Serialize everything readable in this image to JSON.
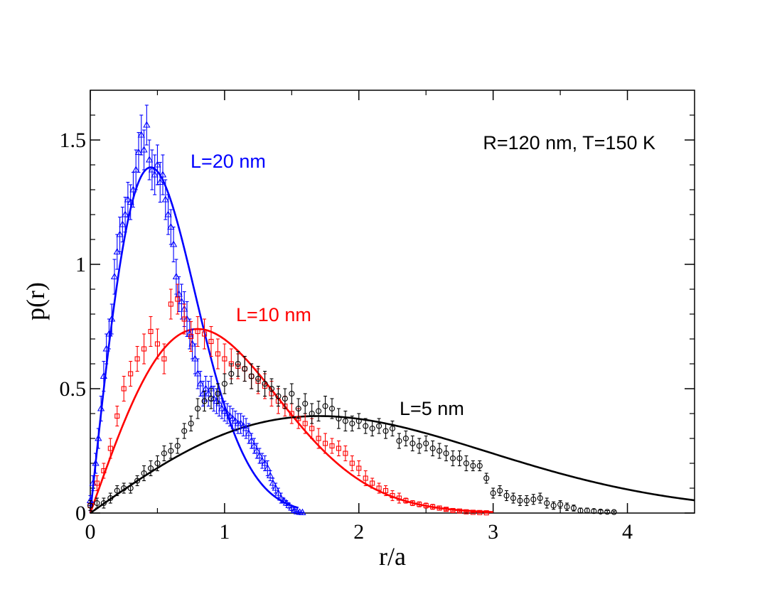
{
  "chart_data": {
    "type": "scatter",
    "title": "",
    "xlabel": "r/a",
    "ylabel": "p(r)",
    "xlim": [
      0,
      4.5
    ],
    "ylim": [
      0,
      1.7
    ],
    "xticks": [
      0,
      1,
      2,
      3,
      4
    ],
    "xtick_labels": [
      "0",
      "1",
      "2",
      "3",
      "4"
    ],
    "yticks": [
      0,
      0.5,
      1,
      1.5
    ],
    "ytick_labels": [
      "0",
      "0.5",
      "1",
      "1.5"
    ],
    "grid": false,
    "annotation": "R=120 nm, T=150 K",
    "series": [
      {
        "name": "L=20 nm",
        "color": "#0000ff",
        "marker": "triangle",
        "fit": {
          "peak_x": 0.45,
          "peak_y": 1.39,
          "x_max": 1.55
        },
        "points": [
          [
            0.0,
            0.05,
            0.02
          ],
          [
            0.02,
            0.12,
            0.03
          ],
          [
            0.04,
            0.2,
            0.04
          ],
          [
            0.06,
            0.3,
            0.04
          ],
          [
            0.08,
            0.42,
            0.05
          ],
          [
            0.1,
            0.55,
            0.06
          ],
          [
            0.12,
            0.66,
            0.06
          ],
          [
            0.14,
            0.72,
            0.06
          ],
          [
            0.16,
            0.78,
            0.06
          ],
          [
            0.18,
            0.95,
            0.07
          ],
          [
            0.2,
            1.05,
            0.07
          ],
          [
            0.22,
            1.12,
            0.07
          ],
          [
            0.24,
            1.16,
            0.07
          ],
          [
            0.26,
            1.2,
            0.07
          ],
          [
            0.28,
            1.26,
            0.07
          ],
          [
            0.3,
            1.25,
            0.07
          ],
          [
            0.32,
            1.3,
            0.07
          ],
          [
            0.34,
            1.38,
            0.08
          ],
          [
            0.36,
            1.45,
            0.08
          ],
          [
            0.38,
            1.52,
            0.08
          ],
          [
            0.4,
            1.46,
            0.08
          ],
          [
            0.42,
            1.56,
            0.08
          ],
          [
            0.44,
            1.42,
            0.08
          ],
          [
            0.46,
            1.38,
            0.08
          ],
          [
            0.48,
            1.36,
            0.08
          ],
          [
            0.5,
            1.4,
            0.08
          ],
          [
            0.52,
            1.33,
            0.08
          ],
          [
            0.54,
            1.36,
            0.08
          ],
          [
            0.56,
            1.26,
            0.08
          ],
          [
            0.58,
            1.2,
            0.08
          ],
          [
            0.6,
            1.15,
            0.07
          ],
          [
            0.62,
            1.08,
            0.07
          ],
          [
            0.64,
            0.95,
            0.07
          ],
          [
            0.66,
            0.88,
            0.07
          ],
          [
            0.68,
            0.85,
            0.07
          ],
          [
            0.7,
            0.82,
            0.07
          ],
          [
            0.72,
            0.78,
            0.07
          ],
          [
            0.74,
            0.72,
            0.06
          ],
          [
            0.76,
            0.68,
            0.06
          ],
          [
            0.78,
            0.62,
            0.06
          ],
          [
            0.8,
            0.56,
            0.06
          ],
          [
            0.82,
            0.52,
            0.05
          ],
          [
            0.84,
            0.48,
            0.05
          ],
          [
            0.86,
            0.5,
            0.05
          ],
          [
            0.88,
            0.48,
            0.05
          ],
          [
            0.9,
            0.5,
            0.05
          ],
          [
            0.92,
            0.46,
            0.05
          ],
          [
            0.94,
            0.45,
            0.05
          ],
          [
            0.96,
            0.44,
            0.05
          ],
          [
            0.98,
            0.42,
            0.04
          ],
          [
            1.0,
            0.41,
            0.04
          ],
          [
            1.02,
            0.4,
            0.04
          ],
          [
            1.04,
            0.39,
            0.04
          ],
          [
            1.06,
            0.38,
            0.04
          ],
          [
            1.08,
            0.37,
            0.04
          ],
          [
            1.1,
            0.36,
            0.04
          ],
          [
            1.12,
            0.36,
            0.04
          ],
          [
            1.14,
            0.35,
            0.04
          ],
          [
            1.16,
            0.34,
            0.04
          ],
          [
            1.18,
            0.32,
            0.04
          ],
          [
            1.2,
            0.29,
            0.03
          ],
          [
            1.22,
            0.27,
            0.03
          ],
          [
            1.24,
            0.25,
            0.03
          ],
          [
            1.26,
            0.23,
            0.03
          ],
          [
            1.28,
            0.21,
            0.03
          ],
          [
            1.3,
            0.2,
            0.03
          ],
          [
            1.32,
            0.18,
            0.03
          ],
          [
            1.34,
            0.15,
            0.02
          ],
          [
            1.36,
            0.12,
            0.02
          ],
          [
            1.38,
            0.1,
            0.02
          ],
          [
            1.4,
            0.08,
            0.02
          ],
          [
            1.42,
            0.06,
            0.02
          ],
          [
            1.44,
            0.05,
            0.01
          ],
          [
            1.46,
            0.04,
            0.01
          ],
          [
            1.48,
            0.03,
            0.01
          ],
          [
            1.5,
            0.02,
            0.01
          ],
          [
            1.52,
            0.01,
            0.005
          ],
          [
            1.54,
            0.005,
            0.003
          ],
          [
            1.56,
            0.003,
            0.002
          ],
          [
            1.58,
            0.002,
            0.001
          ]
        ]
      },
      {
        "name": "L=10 nm",
        "color": "#ff0000",
        "marker": "square",
        "fit": {
          "peak_x": 0.8,
          "peak_y": 0.74,
          "x_max": 3.0
        },
        "points": [
          [
            0.0,
            0.03,
            0.02
          ],
          [
            0.05,
            0.12,
            0.03
          ],
          [
            0.1,
            0.17,
            0.03
          ],
          [
            0.15,
            0.26,
            0.04
          ],
          [
            0.2,
            0.39,
            0.04
          ],
          [
            0.25,
            0.5,
            0.05
          ],
          [
            0.3,
            0.56,
            0.05
          ],
          [
            0.35,
            0.62,
            0.05
          ],
          [
            0.4,
            0.66,
            0.06
          ],
          [
            0.45,
            0.73,
            0.06
          ],
          [
            0.5,
            0.68,
            0.06
          ],
          [
            0.55,
            0.62,
            0.06
          ],
          [
            0.6,
            0.84,
            0.06
          ],
          [
            0.65,
            0.86,
            0.06
          ],
          [
            0.7,
            0.78,
            0.06
          ],
          [
            0.75,
            0.71,
            0.06
          ],
          [
            0.8,
            0.73,
            0.06
          ],
          [
            0.85,
            0.72,
            0.06
          ],
          [
            0.9,
            0.69,
            0.06
          ],
          [
            0.95,
            0.64,
            0.06
          ],
          [
            1.0,
            0.62,
            0.06
          ],
          [
            1.05,
            0.6,
            0.06
          ],
          [
            1.1,
            0.59,
            0.05
          ],
          [
            1.15,
            0.58,
            0.05
          ],
          [
            1.2,
            0.55,
            0.05
          ],
          [
            1.25,
            0.53,
            0.05
          ],
          [
            1.3,
            0.51,
            0.05
          ],
          [
            1.35,
            0.48,
            0.05
          ],
          [
            1.4,
            0.45,
            0.05
          ],
          [
            1.45,
            0.43,
            0.04
          ],
          [
            1.5,
            0.4,
            0.04
          ],
          [
            1.55,
            0.38,
            0.04
          ],
          [
            1.6,
            0.36,
            0.04
          ],
          [
            1.65,
            0.34,
            0.04
          ],
          [
            1.7,
            0.3,
            0.04
          ],
          [
            1.75,
            0.28,
            0.04
          ],
          [
            1.8,
            0.27,
            0.03
          ],
          [
            1.85,
            0.26,
            0.03
          ],
          [
            1.9,
            0.24,
            0.03
          ],
          [
            1.95,
            0.2,
            0.03
          ],
          [
            2.0,
            0.18,
            0.03
          ],
          [
            2.05,
            0.14,
            0.03
          ],
          [
            2.1,
            0.12,
            0.02
          ],
          [
            2.15,
            0.1,
            0.02
          ],
          [
            2.2,
            0.09,
            0.02
          ],
          [
            2.25,
            0.07,
            0.02
          ],
          [
            2.3,
            0.06,
            0.02
          ],
          [
            2.35,
            0.05,
            0.01
          ],
          [
            2.4,
            0.04,
            0.01
          ],
          [
            2.45,
            0.035,
            0.01
          ],
          [
            2.5,
            0.03,
            0.01
          ],
          [
            2.55,
            0.025,
            0.01
          ],
          [
            2.6,
            0.02,
            0.008
          ],
          [
            2.65,
            0.015,
            0.006
          ],
          [
            2.7,
            0.01,
            0.004
          ],
          [
            2.75,
            0.008,
            0.003
          ],
          [
            2.8,
            0.005,
            0.002
          ],
          [
            2.85,
            0.003,
            0.001
          ],
          [
            2.9,
            0.002,
            0.001
          ],
          [
            2.95,
            0.001,
            0.001
          ]
        ]
      },
      {
        "name": "L=5 nm",
        "color": "#000000",
        "marker": "circle",
        "fit": {
          "peak_x": 1.7,
          "peak_y": 0.39,
          "x_max": 4.5
        },
        "points": [
          [
            0.0,
            0.03,
            0.02
          ],
          [
            0.05,
            0.04,
            0.02
          ],
          [
            0.1,
            0.04,
            0.02
          ],
          [
            0.15,
            0.06,
            0.02
          ],
          [
            0.2,
            0.09,
            0.02
          ],
          [
            0.25,
            0.1,
            0.02
          ],
          [
            0.3,
            0.1,
            0.02
          ],
          [
            0.35,
            0.13,
            0.02
          ],
          [
            0.4,
            0.16,
            0.03
          ],
          [
            0.45,
            0.18,
            0.03
          ],
          [
            0.5,
            0.2,
            0.03
          ],
          [
            0.55,
            0.24,
            0.03
          ],
          [
            0.6,
            0.25,
            0.03
          ],
          [
            0.65,
            0.27,
            0.03
          ],
          [
            0.7,
            0.33,
            0.03
          ],
          [
            0.75,
            0.36,
            0.03
          ],
          [
            0.8,
            0.42,
            0.04
          ],
          [
            0.85,
            0.45,
            0.04
          ],
          [
            0.9,
            0.46,
            0.04
          ],
          [
            0.95,
            0.48,
            0.04
          ],
          [
            1.0,
            0.52,
            0.04
          ],
          [
            1.05,
            0.56,
            0.04
          ],
          [
            1.1,
            0.6,
            0.05
          ],
          [
            1.15,
            0.58,
            0.05
          ],
          [
            1.2,
            0.55,
            0.05
          ],
          [
            1.25,
            0.54,
            0.05
          ],
          [
            1.3,
            0.52,
            0.05
          ],
          [
            1.35,
            0.5,
            0.04
          ],
          [
            1.4,
            0.47,
            0.04
          ],
          [
            1.45,
            0.46,
            0.04
          ],
          [
            1.5,
            0.48,
            0.04
          ],
          [
            1.55,
            0.42,
            0.04
          ],
          [
            1.6,
            0.44,
            0.04
          ],
          [
            1.65,
            0.4,
            0.04
          ],
          [
            1.7,
            0.41,
            0.04
          ],
          [
            1.75,
            0.43,
            0.04
          ],
          [
            1.8,
            0.42,
            0.04
          ],
          [
            1.85,
            0.38,
            0.04
          ],
          [
            1.9,
            0.37,
            0.04
          ],
          [
            1.95,
            0.36,
            0.03
          ],
          [
            2.0,
            0.37,
            0.03
          ],
          [
            2.05,
            0.35,
            0.03
          ],
          [
            2.1,
            0.34,
            0.03
          ],
          [
            2.15,
            0.35,
            0.03
          ],
          [
            2.2,
            0.33,
            0.03
          ],
          [
            2.25,
            0.34,
            0.03
          ],
          [
            2.3,
            0.29,
            0.03
          ],
          [
            2.35,
            0.3,
            0.03
          ],
          [
            2.4,
            0.28,
            0.03
          ],
          [
            2.45,
            0.27,
            0.03
          ],
          [
            2.5,
            0.28,
            0.03
          ],
          [
            2.55,
            0.26,
            0.03
          ],
          [
            2.6,
            0.25,
            0.03
          ],
          [
            2.65,
            0.24,
            0.03
          ],
          [
            2.7,
            0.22,
            0.03
          ],
          [
            2.75,
            0.22,
            0.03
          ],
          [
            2.8,
            0.2,
            0.03
          ],
          [
            2.85,
            0.19,
            0.02
          ],
          [
            2.9,
            0.19,
            0.02
          ],
          [
            2.95,
            0.14,
            0.02
          ],
          [
            3.0,
            0.08,
            0.02
          ],
          [
            3.05,
            0.09,
            0.02
          ],
          [
            3.1,
            0.07,
            0.02
          ],
          [
            3.15,
            0.06,
            0.02
          ],
          [
            3.2,
            0.05,
            0.02
          ],
          [
            3.25,
            0.05,
            0.02
          ],
          [
            3.3,
            0.055,
            0.02
          ],
          [
            3.35,
            0.06,
            0.02
          ],
          [
            3.4,
            0.04,
            0.02
          ],
          [
            3.45,
            0.03,
            0.015
          ],
          [
            3.5,
            0.035,
            0.015
          ],
          [
            3.55,
            0.025,
            0.015
          ],
          [
            3.6,
            0.02,
            0.012
          ],
          [
            3.65,
            0.01,
            0.01
          ],
          [
            3.7,
            0.01,
            0.01
          ],
          [
            3.75,
            0.008,
            0.008
          ],
          [
            3.8,
            0.006,
            0.006
          ],
          [
            3.85,
            0.005,
            0.005
          ],
          [
            3.9,
            0.004,
            0.004
          ]
        ]
      }
    ]
  }
}
